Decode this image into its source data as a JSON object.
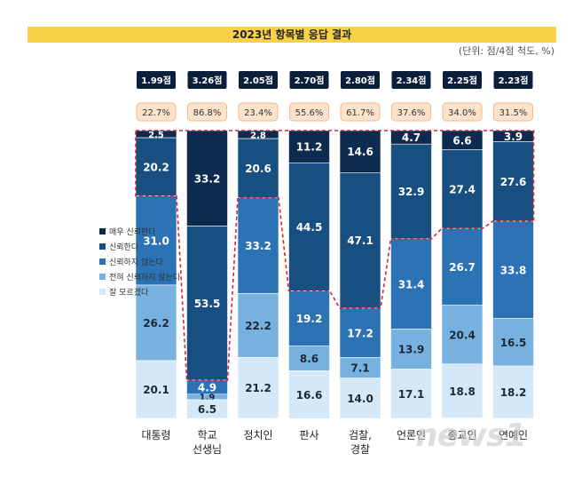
{
  "title": "2023년 항목별 응답 결과",
  "unit": "(단위: 점/4점 척도, %)",
  "legend": [
    {
      "label": "매우 신뢰한다",
      "color": "#0d2b4e"
    },
    {
      "label": "신뢰한다",
      "color": "#174f80"
    },
    {
      "label": "신뢰하지 않는다",
      "color": "#2b73b5"
    },
    {
      "label": "전혀 신뢰하지 않는다",
      "color": "#76b1e0"
    },
    {
      "label": "잘 모르겠다",
      "color": "#d5e8f7"
    }
  ],
  "watermark": "news1",
  "chart_data": {
    "type": "bar",
    "stacked": true,
    "categories": [
      "대통령",
      "학교\n선생님",
      "정치인",
      "판사",
      "검찰,\n경찰",
      "언론인",
      "종교인",
      "연예인"
    ],
    "scores": [
      "1.99점",
      "3.26점",
      "2.05점",
      "2.70점",
      "2.80점",
      "2.34점",
      "2.25점",
      "2.23점"
    ],
    "trust_rates": [
      "22.7%",
      "86.8%",
      "23.4%",
      "55.6%",
      "61.7%",
      "37.6%",
      "34.0%",
      "31.5%"
    ],
    "series": [
      {
        "name": "매우 신뢰한다",
        "values": [
          2.5,
          33.2,
          2.8,
          11.2,
          14.6,
          4.7,
          6.6,
          3.9
        ]
      },
      {
        "name": "신뢰한다",
        "values": [
          20.2,
          53.5,
          20.6,
          44.5,
          47.1,
          32.9,
          27.4,
          27.6
        ]
      },
      {
        "name": "신뢰하지 않는다",
        "values": [
          31.0,
          4.9,
          33.2,
          19.2,
          17.2,
          31.4,
          26.7,
          33.8
        ]
      },
      {
        "name": "전혀 신뢰하지 않는다",
        "values": [
          26.2,
          1.9,
          22.2,
          8.6,
          7.1,
          13.9,
          20.4,
          16.5
        ]
      },
      {
        "name": "잘 모르겠다",
        "values": [
          20.1,
          6.5,
          21.2,
          16.6,
          14.0,
          17.1,
          18.8,
          18.2
        ]
      }
    ],
    "ylim": [
      0,
      100
    ]
  }
}
